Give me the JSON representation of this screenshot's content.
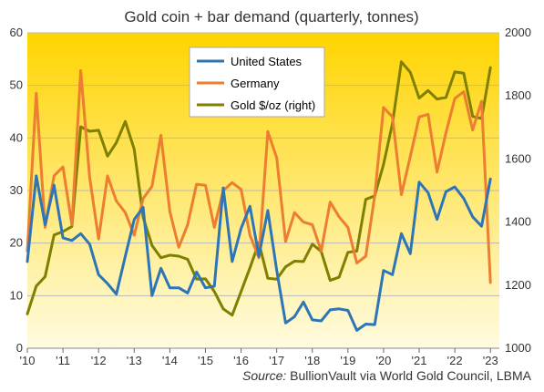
{
  "chart_data": {
    "type": "line",
    "title": "Gold coin + bar demand (quarterly, tonnes)",
    "x_labels": [
      "'10",
      "'11",
      "'12",
      "'13",
      "'14",
      "'15",
      "'16",
      "'17",
      "'18",
      "'19",
      "'20",
      "'21",
      "'22",
      "'23"
    ],
    "left_axis": {
      "min": 0,
      "max": 60,
      "ticks": [
        "0",
        "10",
        "20",
        "30",
        "40",
        "50",
        "60"
      ]
    },
    "right_axis": {
      "min": 1000,
      "max": 2000,
      "ticks": [
        "1000",
        "1200",
        "1400",
        "1600",
        "1800",
        "2000"
      ]
    },
    "grid": "horizontal",
    "legend_position": "top-center",
    "background_gradient": [
      "#ffd400",
      "#fffbe0"
    ],
    "series": [
      {
        "name": "United States",
        "axis": "left",
        "color": "#2e75b6",
        "start_year": 2010,
        "values": [
          16.5,
          32.8,
          23.5,
          31,
          21,
          20.5,
          21.8,
          19.8,
          14,
          12.3,
          10.3,
          17.5,
          24.5,
          26.8,
          10,
          15.2,
          11.5,
          11.5,
          10.5,
          14.5,
          11.5,
          11.8,
          30.5,
          16.5,
          22.8,
          27,
          17.5,
          26.2,
          14.8,
          4.8,
          6,
          8.8,
          5.4,
          5.2,
          7.3,
          7.5,
          7.2,
          3.4,
          4.6,
          4.5,
          14.8,
          14,
          21.8,
          18,
          31.6,
          29.6,
          24.5,
          29.8,
          30.7,
          28.5,
          25,
          23.2,
          32.2
        ]
      },
      {
        "name": "Germany",
        "axis": "left",
        "color": "#ed7d31",
        "start_year": 2010,
        "values": [
          18.5,
          48.5,
          23,
          32.8,
          34.5,
          23.5,
          52.8,
          32.5,
          20.8,
          32.8,
          28,
          25.8,
          21.5,
          28.5,
          30.8,
          40.5,
          26,
          19.2,
          23.5,
          31.2,
          31,
          23,
          30,
          31.5,
          30.2,
          21.5,
          17.2,
          41.2,
          36.2,
          20.3,
          25.8,
          24,
          23.5,
          18.5,
          27.8,
          25,
          23,
          16.2,
          17.5,
          29,
          45.8,
          44,
          29.2,
          36.5,
          44,
          44.5,
          33.5,
          41,
          47.5,
          48.8,
          41.5,
          47,
          12.5
        ]
      },
      {
        "name": "Gold $/oz (right)",
        "axis": "right",
        "color": "#7f7f00",
        "start_year": 2010,
        "values": [
          1109,
          1197,
          1227,
          1359,
          1370,
          1386,
          1702,
          1688,
          1691,
          1609,
          1652,
          1719,
          1631,
          1415,
          1326,
          1287,
          1295,
          1292,
          1282,
          1219,
          1220,
          1180,
          1125,
          1105,
          1180,
          1255,
          1335,
          1222,
          1219,
          1258,
          1276,
          1275,
          1330,
          1307,
          1215,
          1225,
          1304,
          1308,
          1472,
          1483,
          1583,
          1713,
          1908,
          1875,
          1793,
          1817,
          1790,
          1795,
          1876,
          1872,
          1735,
          1728,
          1890
        ]
      }
    ]
  },
  "source": {
    "label": "Source:",
    "text": "BullionVault via World Gold Council, LBMA"
  }
}
